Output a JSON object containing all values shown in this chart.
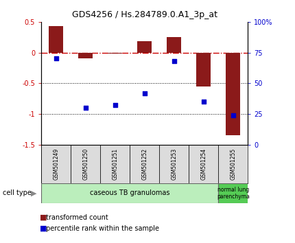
{
  "title": "GDS4256 / Hs.284789.0.A1_3p_at",
  "samples": [
    "GSM501249",
    "GSM501250",
    "GSM501251",
    "GSM501252",
    "GSM501253",
    "GSM501254",
    "GSM501255"
  ],
  "transformed_count": [
    0.43,
    -0.1,
    -0.02,
    0.18,
    0.25,
    -0.55,
    -1.35
  ],
  "percentile_rank": [
    70,
    30,
    32,
    42,
    68,
    35,
    24
  ],
  "ylim_left": [
    -1.5,
    0.5
  ],
  "ylim_right": [
    0,
    100
  ],
  "yticks_left": [
    0.5,
    0,
    -0.5,
    -1.0,
    -1.5
  ],
  "yticks_right": [
    100,
    75,
    50,
    25,
    0
  ],
  "bar_color": "#8B1A1A",
  "dot_color": "#0000CD",
  "hline_color": "#CC0000",
  "background_plot": "#FFFFFF",
  "group1_label": "caseous TB granulomas",
  "group1_color": "#BBEEBC",
  "group1_samples": 6,
  "group2_label": "normal lung\nparenchyma",
  "group2_color": "#55CC55",
  "group2_samples": 1,
  "legend_items": [
    {
      "color": "#8B1A1A",
      "label": "transformed count"
    },
    {
      "color": "#0000CD",
      "label": "percentile rank within the sample"
    }
  ],
  "cell_type_label": "cell type"
}
